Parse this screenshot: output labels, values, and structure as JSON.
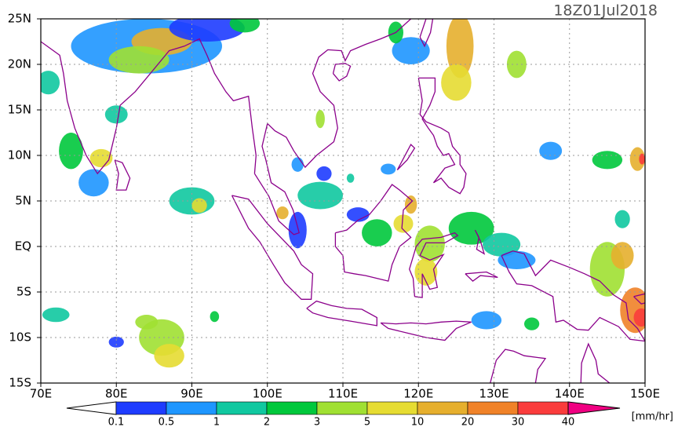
{
  "title": "18Z01Jul2018",
  "lat_labels": [
    "25N",
    "20N",
    "15N",
    "10N",
    "5N",
    "EQ",
    "5S",
    "10S",
    "15S"
  ],
  "lon_labels": [
    "70E",
    "80E",
    "90E",
    "100E",
    "110E",
    "120E",
    "130E",
    "140E",
    "150E"
  ],
  "colorbar": {
    "labels": [
      "0.1",
      "0.5",
      "1",
      "2",
      "3",
      "5",
      "10",
      "20",
      "30",
      "40"
    ],
    "colors": [
      "#ffffff",
      "#1e3cff",
      "#1e96ff",
      "#10c8a0",
      "#00c83c",
      "#a0e032",
      "#e6dc32",
      "#e6af2d",
      "#f08228",
      "#fa3c3c",
      "#f00082"
    ],
    "unit": "[mm/hr]"
  }
}
